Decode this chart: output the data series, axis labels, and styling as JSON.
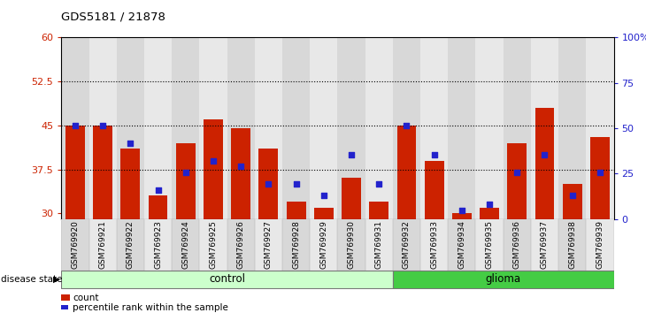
{
  "title": "GDS5181 / 21878",
  "samples": [
    "GSM769920",
    "GSM769921",
    "GSM769922",
    "GSM769923",
    "GSM769924",
    "GSM769925",
    "GSM769926",
    "GSM769927",
    "GSM769928",
    "GSM769929",
    "GSM769930",
    "GSM769931",
    "GSM769932",
    "GSM769933",
    "GSM769934",
    "GSM769935",
    "GSM769936",
    "GSM769937",
    "GSM769938",
    "GSM769939"
  ],
  "bar_values": [
    45,
    45,
    41,
    33,
    42,
    46,
    44.5,
    41,
    32,
    31,
    36,
    32,
    45,
    39,
    30,
    31,
    42,
    48,
    35,
    43
  ],
  "dot_values": [
    45,
    45,
    42,
    34,
    37,
    39,
    38,
    35,
    35,
    33,
    40,
    35,
    45,
    40,
    30.5,
    31.5,
    37,
    40,
    33,
    37
  ],
  "bar_bottom": 29,
  "ylim_left": [
    29,
    60
  ],
  "ylim_right": [
    0,
    100
  ],
  "yticks_left": [
    30,
    37.5,
    45,
    52.5,
    60
  ],
  "yticks_right": [
    0,
    25,
    50,
    75,
    100
  ],
  "ytick_labels_left": [
    "30",
    "37.5",
    "45",
    "52.5",
    "60"
  ],
  "ytick_labels_right": [
    "0",
    "25",
    "50",
    "75",
    "100%"
  ],
  "hlines": [
    37.5,
    45,
    52.5
  ],
  "bar_color": "#cc2200",
  "dot_color": "#2222cc",
  "col_bg_even": "#d8d8d8",
  "col_bg_odd": "#e8e8e8",
  "control_indices": [
    0,
    1,
    2,
    3,
    4,
    5,
    6,
    7,
    8,
    9,
    10,
    11
  ],
  "glioma_indices": [
    12,
    13,
    14,
    15,
    16,
    17,
    18,
    19
  ],
  "control_color_light": "#ccffcc",
  "control_color_dark": "#88ee88",
  "glioma_color_light": "#88ee88",
  "glioma_color_dark": "#44cc44",
  "control_label": "control",
  "glioma_label": "glioma",
  "disease_state_label": "disease state",
  "legend_count_label": "count",
  "legend_percentile_label": "percentile rank within the sample",
  "bar_width": 0.7
}
